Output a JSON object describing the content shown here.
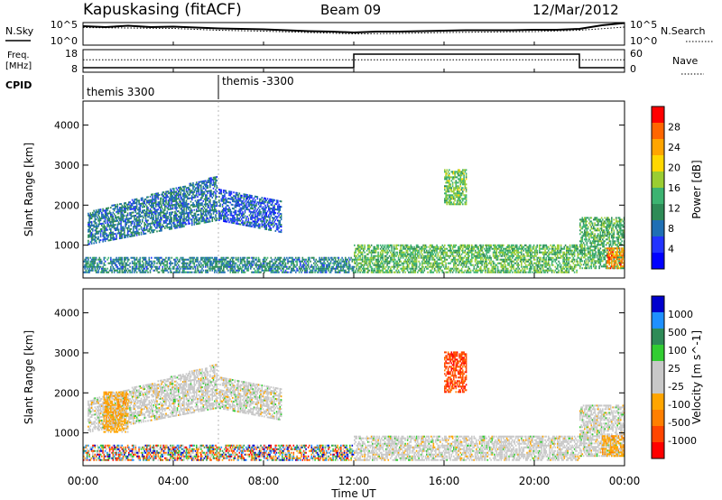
{
  "header": {
    "station": "Kapuskasing (fitACF)",
    "beam": "Beam 09",
    "date": "12/Mar/2012"
  },
  "strip_labels": {
    "nsky": "N.Sky",
    "nsearch": "N.Search",
    "freq_line1": "Freq.",
    "freq_line2": "[MHz]",
    "nave": "Nave",
    "cpid": "CPID"
  },
  "cpid_annotations": [
    "themis 3300",
    "themis -3300"
  ],
  "chart_data": [
    {
      "type": "line",
      "name": "noise-strip",
      "left_ticks": [
        "10^5",
        "10^0"
      ],
      "right_ticks": [
        "10^5",
        "10^0"
      ],
      "series": [
        {
          "name": "N.Sky",
          "x_hours": [
            0,
            1,
            2,
            3,
            4,
            5,
            6,
            7,
            8,
            9,
            10,
            11,
            12,
            13,
            14,
            15,
            16,
            17,
            18,
            19,
            20,
            21,
            22,
            23,
            24
          ],
          "values_log10": [
            4.2,
            4.0,
            4.3,
            4.0,
            4.1,
            3.9,
            3.7,
            3.6,
            3.5,
            3.3,
            3.1,
            3.0,
            2.8,
            3.0,
            3.0,
            3.1,
            3.2,
            3.3,
            3.3,
            3.3,
            3.4,
            3.4,
            3.6,
            4.4,
            4.9
          ]
        },
        {
          "name": "N.Search",
          "x_hours": [
            0,
            2,
            4,
            6,
            8,
            10,
            12,
            14,
            16,
            18,
            20,
            22,
            24
          ],
          "values_log10": [
            3.9,
            3.8,
            3.7,
            3.3,
            3.1,
            2.8,
            2.5,
            2.6,
            2.8,
            2.9,
            3.0,
            3.3,
            4.0
          ]
        }
      ]
    },
    {
      "type": "line",
      "name": "freq-nave-strip",
      "left_ticks": [
        "18",
        "8"
      ],
      "right_ticks": [
        "60",
        "0"
      ],
      "series": [
        {
          "name": "Freq.",
          "x_hours": [
            0,
            12,
            12,
            22,
            22,
            24
          ],
          "values": [
            10,
            10,
            16,
            16,
            10,
            10
          ]
        },
        {
          "name": "Nave",
          "x_hours": [
            0,
            24
          ],
          "values": [
            33,
            33
          ]
        }
      ]
    },
    {
      "type": "heatmap",
      "name": "power",
      "ylabel": "Slant Range [km]",
      "yticks": [
        1000,
        2000,
        3000,
        4000
      ],
      "ylim": [
        180,
        4600
      ],
      "xlim": [
        0,
        24
      ],
      "colorbar_label": "Power [dB]",
      "colorbar_ticks": [
        4,
        8,
        12,
        16,
        20,
        24,
        28
      ],
      "colorbar_range": [
        0,
        32
      ],
      "colors": [
        "#0000ff",
        "#2233ff",
        "#1f6fb4",
        "#2e8b57",
        "#3cb371",
        "#9acd32",
        "#ffd700",
        "#ffa500",
        "#ff6600",
        "#ff0000"
      ],
      "regions": [
        {
          "t0": 0.2,
          "t1": 5.9,
          "r0_start": 1000,
          "r0_end": 1600,
          "r1_start": 1800,
          "r1_end": 2700,
          "level": 9
        },
        {
          "t0": 6.0,
          "t1": 8.8,
          "r0_start": 1600,
          "r0_end": 1300,
          "r1_start": 2400,
          "r1_end": 2100,
          "level": 7
        },
        {
          "t0": 0.0,
          "t1": 12.0,
          "r0_start": 300,
          "r0_end": 300,
          "r1_start": 700,
          "r1_end": 700,
          "level": 10
        },
        {
          "t0": 12.0,
          "t1": 22.0,
          "r0_start": 300,
          "r0_end": 300,
          "r1_start": 1000,
          "r1_end": 1000,
          "level": 15
        },
        {
          "t0": 16.0,
          "t1": 17.0,
          "r0_start": 2000,
          "r0_end": 2000,
          "r1_start": 2900,
          "r1_end": 2900,
          "level": 16
        },
        {
          "t0": 22.0,
          "t1": 24.0,
          "r0_start": 400,
          "r0_end": 400,
          "r1_start": 1700,
          "r1_end": 1700,
          "level": 14
        },
        {
          "t0": 23.2,
          "t1": 24.0,
          "r0_start": 400,
          "r0_end": 400,
          "r1_start": 900,
          "r1_end": 900,
          "level": 26
        }
      ]
    },
    {
      "type": "heatmap",
      "name": "velocity",
      "xlabel": "Time UT",
      "ylabel": "Slant Range [km]",
      "yticks": [
        1000,
        2000,
        3000,
        4000
      ],
      "ylim": [
        180,
        4600
      ],
      "xlim": [
        0,
        24
      ],
      "xticks": [
        "00:00",
        "04:00",
        "08:00",
        "12:00",
        "16:00",
        "20:00",
        "00:00"
      ],
      "colorbar_label": "Velocity [m s^-1]",
      "colorbar_ticks": [
        "1000",
        "500",
        "100",
        "25",
        "-25",
        "-100",
        "-500",
        "-1000"
      ],
      "colors": [
        "#0000cd",
        "#1e90ff",
        "#2e8b57",
        "#32cd32",
        "#c8c8c8",
        "#c8c8c8",
        "#ffa500",
        "#ff7f00",
        "#ff4500",
        "#ff0000"
      ],
      "regions": [
        {
          "t0": 0.2,
          "t1": 5.9,
          "r0_start": 1000,
          "r0_end": 1600,
          "r1_start": 1800,
          "r1_end": 2700,
          "level": "grey"
        },
        {
          "t0": 0.9,
          "t1": 2.0,
          "r0_start": 1000,
          "r0_end": 1000,
          "r1_start": 2000,
          "r1_end": 2000,
          "level": "orange"
        },
        {
          "t0": 6.0,
          "t1": 8.8,
          "r0_start": 1600,
          "r0_end": 1300,
          "r1_start": 2400,
          "r1_end": 2100,
          "level": "grey"
        },
        {
          "t0": 0.0,
          "t1": 12.0,
          "r0_start": 300,
          "r0_end": 300,
          "r1_start": 700,
          "r1_end": 700,
          "level": "mixed"
        },
        {
          "t0": 12.0,
          "t1": 22.0,
          "r0_start": 300,
          "r0_end": 300,
          "r1_start": 900,
          "r1_end": 900,
          "level": "grey"
        },
        {
          "t0": 16.0,
          "t1": 17.0,
          "r0_start": 2000,
          "r0_end": 2000,
          "r1_start": 3000,
          "r1_end": 3000,
          "level": "red"
        },
        {
          "t0": 22.0,
          "t1": 24.0,
          "r0_start": 400,
          "r0_end": 400,
          "r1_start": 1700,
          "r1_end": 1700,
          "level": "grey"
        },
        {
          "t0": 23.0,
          "t1": 24.0,
          "r0_start": 400,
          "r0_end": 400,
          "r1_start": 900,
          "r1_end": 900,
          "level": "orange"
        }
      ]
    }
  ]
}
